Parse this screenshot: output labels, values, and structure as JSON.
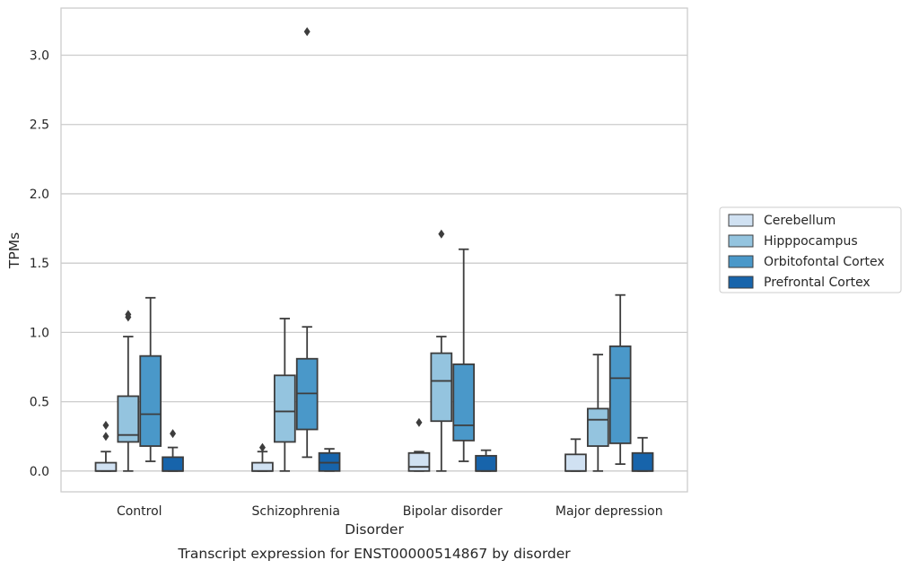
{
  "caption": "Transcript expression for ENST00000514867 by disorder",
  "chart_data": {
    "type": "boxplot",
    "xlabel": "Disorder",
    "ylabel": "TPMs",
    "categories": [
      "Control",
      "Schizophrenia",
      "Bipolar disorder",
      "Major depression"
    ],
    "ylim": [
      -0.15,
      3.34
    ],
    "yticks": [
      0.0,
      0.5,
      1.0,
      1.5,
      2.0,
      2.5,
      3.0
    ],
    "ytick_labels": [
      "0.0",
      "0.5",
      "1.0",
      "1.5",
      "2.0",
      "2.5",
      "3.0"
    ],
    "grid": "horizontal",
    "legend_position": "right-outside",
    "series": [
      {
        "name": "Cerebellum",
        "color": "#d0e1f2",
        "boxes": [
          {
            "whislo": 0.0,
            "q1": 0.0,
            "med": 0.0,
            "q3": 0.06,
            "whishi": 0.14,
            "fliers": [
              0.25,
              0.33
            ]
          },
          {
            "whislo": 0.0,
            "q1": 0.0,
            "med": 0.0,
            "q3": 0.06,
            "whishi": 0.14,
            "fliers": [
              0.17
            ]
          },
          {
            "whislo": 0.0,
            "q1": 0.0,
            "med": 0.03,
            "q3": 0.13,
            "whishi": 0.14,
            "fliers": [
              0.35
            ]
          },
          {
            "whislo": 0.0,
            "q1": 0.0,
            "med": 0.0,
            "q3": 0.12,
            "whishi": 0.23,
            "fliers": []
          }
        ]
      },
      {
        "name": "Hipppocampus",
        "color": "#94c4df",
        "boxes": [
          {
            "whislo": 0.0,
            "q1": 0.21,
            "med": 0.26,
            "q3": 0.54,
            "whishi": 0.97,
            "fliers": [
              1.11,
              1.13
            ]
          },
          {
            "whislo": 0.0,
            "q1": 0.21,
            "med": 0.43,
            "q3": 0.69,
            "whishi": 1.1,
            "fliers": []
          },
          {
            "whislo": 0.0,
            "q1": 0.36,
            "med": 0.65,
            "q3": 0.85,
            "whishi": 0.97,
            "fliers": [
              1.71
            ]
          },
          {
            "whislo": 0.0,
            "q1": 0.18,
            "med": 0.37,
            "q3": 0.45,
            "whishi": 0.84,
            "fliers": []
          }
        ]
      },
      {
        "name": "Orbitofontal Cortex",
        "color": "#4a98c9",
        "boxes": [
          {
            "whislo": 0.07,
            "q1": 0.18,
            "med": 0.41,
            "q3": 0.83,
            "whishi": 1.25,
            "fliers": []
          },
          {
            "whislo": 0.1,
            "q1": 0.3,
            "med": 0.56,
            "q3": 0.81,
            "whishi": 1.04,
            "fliers": [
              3.17
            ]
          },
          {
            "whislo": 0.07,
            "q1": 0.22,
            "med": 0.33,
            "q3": 0.77,
            "whishi": 1.6,
            "fliers": []
          },
          {
            "whislo": 0.05,
            "q1": 0.2,
            "med": 0.67,
            "q3": 0.9,
            "whishi": 1.27,
            "fliers": []
          }
        ]
      },
      {
        "name": "Prefrontal Cortex",
        "color": "#1764ab",
        "boxes": [
          {
            "whislo": 0.0,
            "q1": 0.0,
            "med": 0.0,
            "q3": 0.1,
            "whishi": 0.17,
            "fliers": [
              0.27
            ]
          },
          {
            "whislo": 0.0,
            "q1": 0.0,
            "med": 0.06,
            "q3": 0.13,
            "whishi": 0.16,
            "fliers": []
          },
          {
            "whislo": 0.0,
            "q1": 0.0,
            "med": 0.0,
            "q3": 0.11,
            "whishi": 0.15,
            "fliers": []
          },
          {
            "whislo": 0.0,
            "q1": 0.0,
            "med": 0.0,
            "q3": 0.13,
            "whishi": 0.24,
            "fliers": []
          }
        ]
      }
    ]
  },
  "colors": {
    "grid": "#cccccc",
    "frame": "#cccccc",
    "box_edge": "#3d3d3d",
    "text": "#262626"
  }
}
